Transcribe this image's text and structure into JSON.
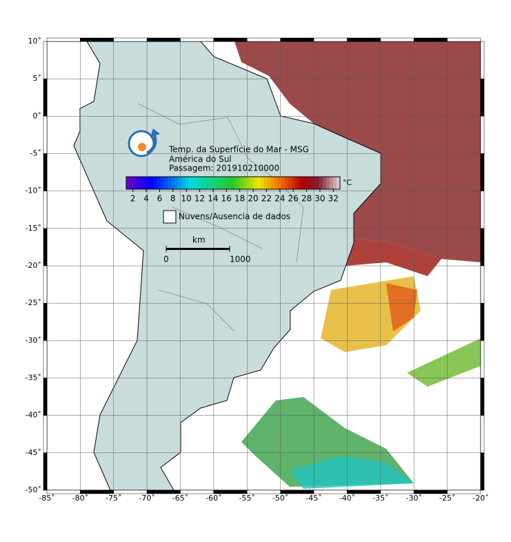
{
  "map": {
    "title_lines": [
      "Temp. da Superfície do Mar - MSG",
      "América do Sul",
      "Passagem: 201910210000"
    ],
    "colorbar": {
      "lim": [
        1,
        33
      ],
      "ticks": [
        2,
        4,
        6,
        8,
        10,
        12,
        14,
        16,
        18,
        20,
        22,
        24,
        26,
        28,
        30,
        32
      ],
      "unit": "°C"
    },
    "legend": {
      "label": "Nuvens/Ausencia de dados"
    },
    "scale": {
      "unit": "km",
      "ticks": [
        0,
        1000
      ]
    },
    "lon": {
      "lim": [
        -85,
        -20
      ],
      "ticks": [
        {
          "value": -85,
          "label": "-85˚"
        },
        {
          "value": -80,
          "label": "-80˚"
        },
        {
          "value": -75,
          "label": "-75˚"
        },
        {
          "value": -70,
          "label": "-70˚"
        },
        {
          "value": -65,
          "label": "-65˚"
        },
        {
          "value": -60,
          "label": "-60˚"
        },
        {
          "value": -55,
          "label": "-55˚"
        },
        {
          "value": -50,
          "label": "-50˚"
        },
        {
          "value": -45,
          "label": "-45˚"
        },
        {
          "value": -40,
          "label": "-40˚"
        },
        {
          "value": -35,
          "label": "-35˚"
        },
        {
          "value": -30,
          "label": "-30˚"
        },
        {
          "value": -25,
          "label": "-25˚"
        },
        {
          "value": -20,
          "label": "-20˚"
        }
      ]
    },
    "lat": {
      "lim": [
        -50,
        10
      ],
      "ticks": [
        {
          "value": 10,
          "label": "10˚"
        },
        {
          "value": 5,
          "label": "5˚"
        },
        {
          "value": 0,
          "label": "0˚"
        },
        {
          "value": -5,
          "label": "-5˚"
        },
        {
          "value": -10,
          "label": "-10˚"
        },
        {
          "value": -15,
          "label": "-15˚"
        },
        {
          "value": -20,
          "label": "-20˚"
        },
        {
          "value": -25,
          "label": "-25˚"
        },
        {
          "value": -30,
          "label": "-30˚"
        },
        {
          "value": -35,
          "label": "-35˚"
        },
        {
          "value": -40,
          "label": "-40˚"
        },
        {
          "value": -45,
          "label": "-45˚"
        },
        {
          "value": -50,
          "label": "-50˚"
        }
      ]
    }
  }
}
